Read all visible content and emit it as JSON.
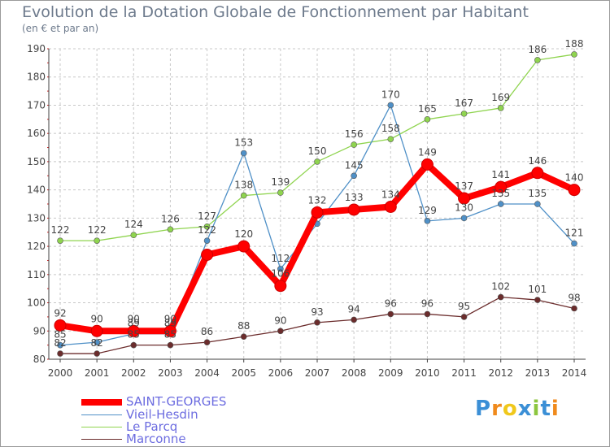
{
  "title": "Evolution de la Dotation Globale de Fonctionnement par Habitant",
  "subtitle": "(en € et par an)",
  "logo": "Proxiti",
  "colors": {
    "grid": "#c8c8c8",
    "axis": "#404040",
    "saint_georges": "#ff0000",
    "vieil_hesdin": "#4f90c7",
    "le_parcq": "#8fd44f",
    "marconne": "#6b2c2c",
    "text": "#444444",
    "legend_text": "#6c6ce0"
  },
  "chart_data": {
    "type": "line",
    "title": "Evolution de la Dotation Globale de Fonctionnement par Habitant",
    "subtitle": "(en € et par an)",
    "xlabel": "",
    "ylabel": "",
    "ylim": [
      80,
      190
    ],
    "yticks": [
      80,
      90,
      100,
      110,
      120,
      130,
      140,
      150,
      160,
      170,
      180,
      190
    ],
    "grid": true,
    "x": [
      "2000",
      "2001",
      "2002",
      "2003",
      "2004",
      "2005",
      "2006",
      "2007",
      "2008",
      "2009",
      "2010",
      "2011",
      "2012",
      "2013",
      "2014"
    ],
    "series": [
      {
        "name": "SAINT-GEORGES",
        "key": "saint_georges",
        "values": [
          92,
          90,
          90,
          90,
          117,
          120,
          106,
          132,
          133,
          134,
          149,
          137,
          141,
          146,
          140
        ],
        "labels": [
          "92",
          "90",
          "90",
          "90",
          "",
          "120",
          "106",
          "132",
          "133",
          "134",
          "149",
          "137",
          "141",
          "146",
          "140"
        ]
      },
      {
        "name": "Vieil-Hesdin",
        "key": "vieil_hesdin",
        "values": [
          85,
          86,
          89,
          89,
          122,
          153,
          112,
          128,
          145,
          170,
          129,
          130,
          135,
          135,
          121
        ],
        "labels": [
          "85",
          "",
          "89",
          "89",
          "122",
          "153",
          "112",
          "",
          "145",
          "170",
          "129",
          "130",
          "135",
          "135",
          "121"
        ]
      },
      {
        "name": "Le Parcq",
        "key": "le_parcq",
        "values": [
          122,
          122,
          124,
          126,
          127,
          138,
          139,
          150,
          156,
          158,
          165,
          167,
          169,
          186,
          188
        ],
        "labels": [
          "122",
          "122",
          "124",
          "126",
          "127",
          "138",
          "139",
          "150",
          "156",
          "158",
          "165",
          "167",
          "169",
          "186",
          "188"
        ]
      },
      {
        "name": "Marconne",
        "key": "marconne",
        "values": [
          82,
          82,
          85,
          85,
          86,
          88,
          90,
          93,
          94,
          96,
          96,
          95,
          102,
          101,
          98
        ],
        "labels": [
          "82",
          "82",
          "85",
          "85",
          "86",
          "88",
          "90",
          "93",
          "94",
          "96",
          "96",
          "95",
          "102",
          "101",
          "98"
        ]
      }
    ]
  },
  "legend": {
    "items": [
      {
        "label": "SAINT-GEORGES",
        "key": "saint_georges"
      },
      {
        "label": "Vieil-Hesdin",
        "key": "vieil_hesdin"
      },
      {
        "label": "Le Parcq",
        "key": "le_parcq"
      },
      {
        "label": "Marconne",
        "key": "marconne"
      }
    ]
  }
}
